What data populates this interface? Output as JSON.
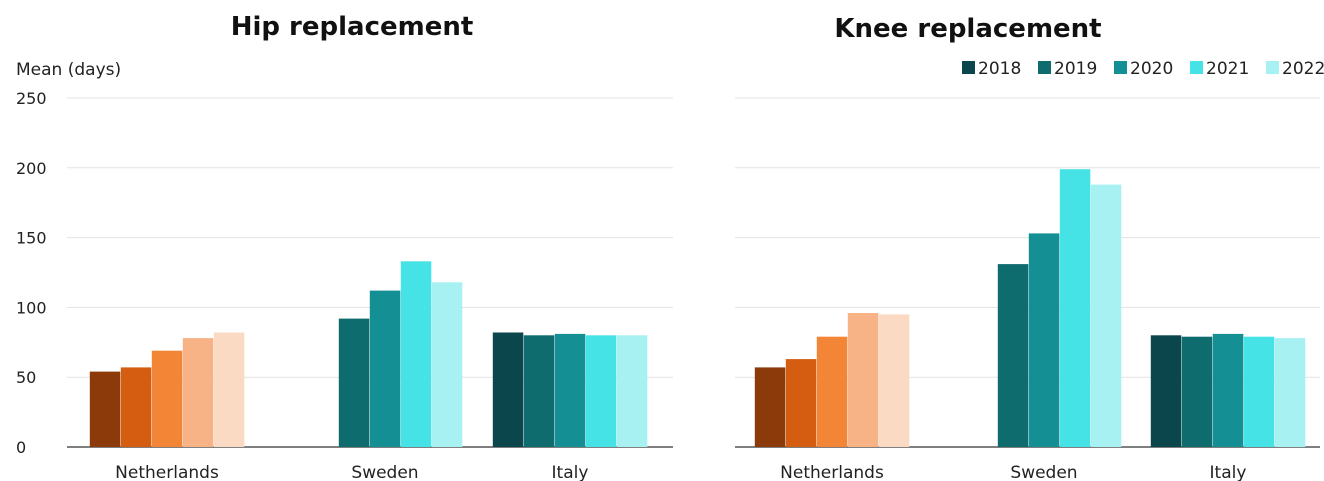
{
  "chart_data": [
    {
      "type": "bar",
      "title": "Hip replacement",
      "ylabel": "Mean (days)",
      "xlabel": "",
      "ylim": [
        0,
        250
      ],
      "yticks": [
        0,
        50,
        100,
        150,
        200,
        250
      ],
      "grid": true,
      "categories": [
        "Netherlands",
        "Sweden",
        "Italy"
      ],
      "series": [
        {
          "name": "2018",
          "values": [
            54,
            null,
            82
          ]
        },
        {
          "name": "2019",
          "values": [
            57,
            92,
            80
          ]
        },
        {
          "name": "2020",
          "values": [
            69,
            112,
            81
          ]
        },
        {
          "name": "2021",
          "values": [
            78,
            133,
            80
          ]
        },
        {
          "name": "2022",
          "values": [
            82,
            118,
            80
          ]
        }
      ],
      "palettes": {
        "Netherlands": [
          "#8c3a0a",
          "#d45d12",
          "#f28536",
          "#f7b385",
          "#fbdac4"
        ],
        "Sweden": [
          "#0a464b",
          "#0e6b6e",
          "#149095",
          "#46e3e6",
          "#a8f1f3"
        ],
        "Italy": [
          "#0a464b",
          "#0e6b6e",
          "#149095",
          "#46e3e6",
          "#a8f1f3"
        ]
      }
    },
    {
      "type": "bar",
      "title": "Knee replacement",
      "ylabel": "",
      "xlabel": "",
      "ylim": [
        0,
        250
      ],
      "grid": true,
      "categories": [
        "Netherlands",
        "Sweden",
        "Italy"
      ],
      "series": [
        {
          "name": "2018",
          "values": [
            57,
            null,
            80
          ]
        },
        {
          "name": "2019",
          "values": [
            63,
            131,
            79
          ]
        },
        {
          "name": "2020",
          "values": [
            79,
            153,
            81
          ]
        },
        {
          "name": "2021",
          "values": [
            96,
            199,
            79
          ]
        },
        {
          "name": "2022",
          "values": [
            95,
            188,
            78
          ]
        }
      ],
      "legend": {
        "placement": "top-right",
        "entries": [
          "2018",
          "2019",
          "2020",
          "2021",
          "2022"
        ],
        "colors": [
          "#0a464b",
          "#0e6b6e",
          "#149095",
          "#46e3e6",
          "#a8f1f3"
        ]
      },
      "palettes": {
        "Netherlands": [
          "#8c3a0a",
          "#d45d12",
          "#f28536",
          "#f7b385",
          "#fbdac4"
        ],
        "Sweden": [
          "#0a464b",
          "#0e6b6e",
          "#149095",
          "#46e3e6",
          "#a8f1f3"
        ],
        "Italy": [
          "#0a464b",
          "#0e6b6e",
          "#149095",
          "#46e3e6",
          "#a8f1f3"
        ]
      }
    }
  ]
}
